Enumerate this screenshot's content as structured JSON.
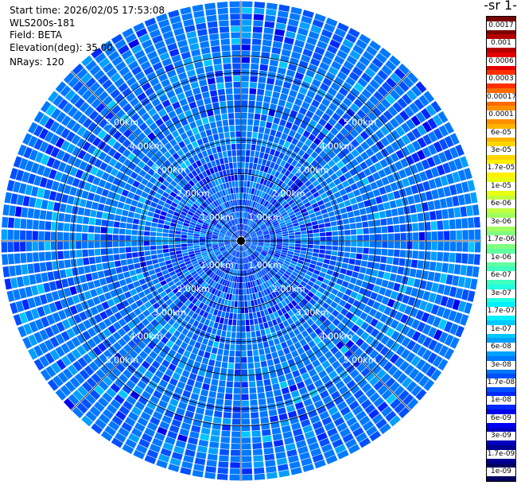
{
  "header": {
    "start_time": "Start time: 2026/02/05 17:53:08",
    "instrument": "WLS200s-181",
    "field": "Field: BETA",
    "elevation": "Elevation(deg): 35.00",
    "nrays": "NRays: 120"
  },
  "colorbar": {
    "title": "-1 sr-",
    "labels": [
      "0.0017",
      "0.001",
      "0.0006",
      "0.0003",
      "0.00017",
      "0.0001",
      "6e-05",
      "3e-05",
      "1.7e-05",
      "1e-05",
      "6e-06",
      "3e-06",
      "1.7e-06",
      "1e-06",
      "6e-07",
      "3e-07",
      "1.7e-07",
      "1e-07",
      "6e-08",
      "3e-08",
      "1.7e-08",
      "1e-08",
      "6e-09",
      "3e-09",
      "1.7e-09",
      "1e-09"
    ],
    "colors": [
      "#7a0000",
      "#b40000",
      "#e60000",
      "#ff3000",
      "#ff6a00",
      "#ff9000",
      "#ffb400",
      "#ffd600",
      "#fff000",
      "#e8ff10",
      "#c0ff40",
      "#a0ff60",
      "#80ff80",
      "#60ffa0",
      "#40ffc0",
      "#20ffe0",
      "#00f0ff",
      "#00c8ff",
      "#00a0ff",
      "#0078ff",
      "#0050ff",
      "#0028ff",
      "#0000f0",
      "#0000c0",
      "#000090",
      "#000060"
    ]
  },
  "chart_data": {
    "type": "heatmap",
    "projection": "polar-ppi",
    "nrays": 120,
    "max_range_km": 5.5,
    "range_rings_km": [
      1,
      2,
      3,
      4,
      5
    ],
    "ring_labels": [
      "1.00km",
      "2.00km",
      "3.00km",
      "4.00km",
      "5.00km"
    ],
    "dominant_values": [
      "6e-08",
      "3e-08",
      "1.7e-08"
    ],
    "grid": true
  }
}
